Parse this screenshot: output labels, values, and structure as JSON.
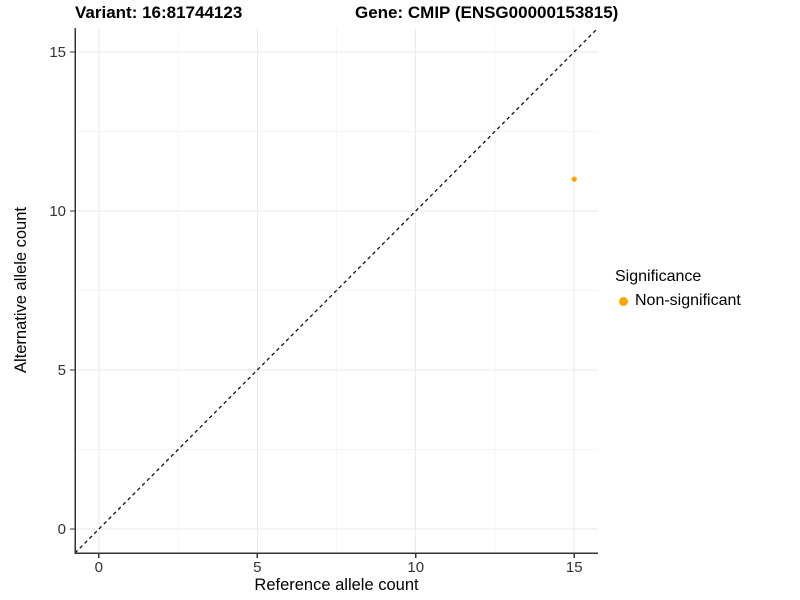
{
  "chart_data": {
    "type": "scatter",
    "title_parts": {
      "variant": "Variant: 16:81744123",
      "gene": "Gene: CMIP (ENSG00000153815)"
    },
    "xlabel": "Reference allele count",
    "ylabel": "Alternative allele count",
    "xlim": [
      -0.75,
      15.75
    ],
    "ylim": [
      -0.75,
      15.75
    ],
    "x_ticks": [
      0,
      5,
      10,
      15
    ],
    "y_ticks": [
      0,
      5,
      10,
      15
    ],
    "x_minor_ticks": [
      2.5,
      7.5,
      12.5
    ],
    "y_minor_ticks": [
      2.5,
      7.5,
      12.5
    ],
    "grid": true,
    "series": [
      {
        "name": "Non-significant",
        "color": "#FFA500",
        "points": [
          {
            "x": 15,
            "y": 11
          }
        ]
      }
    ],
    "reference_line": {
      "type": "identity",
      "equation": "y = x",
      "style": "dashed",
      "color": "#000000"
    },
    "legend": {
      "title": "Significance",
      "position": "right",
      "items": [
        {
          "label": "Non-significant",
          "color": "#FFA500"
        }
      ]
    }
  }
}
